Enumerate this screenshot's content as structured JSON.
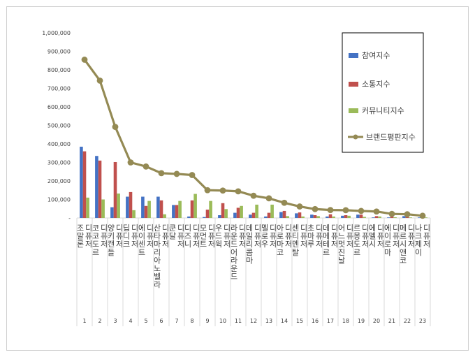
{
  "chart_data": {
    "type": "bar",
    "y_tick_labels": [
      "-",
      "100,000",
      "200,000",
      "300,000",
      "400,000",
      "500,000",
      "600,000",
      "700,000",
      "800,000",
      "900,000",
      "1,000,000"
    ],
    "ylim": [
      0,
      1000000
    ],
    "categories": [
      {
        "num": "1",
        "name": "조말론 디퓨저"
      },
      {
        "num": "2",
        "name": "코코도르 디퓨저"
      },
      {
        "num": "3",
        "name": "양키캔들 디퓨저"
      },
      {
        "num": "4",
        "name": "딥디크 디퓨저"
      },
      {
        "num": "5",
        "name": "에이센트 디퓨저"
      },
      {
        "num": "6",
        "name": "산타마리아노벨라 디퓨저"
      },
      {
        "num": "7",
        "name": "쿤달 디퓨저"
      },
      {
        "num": "8",
        "name": "디즈니 디퓨저"
      },
      {
        "num": "9",
        "name": "모먼트 디퓨저"
      },
      {
        "num": "10",
        "name": "우드윅 디퓨저"
      },
      {
        "num": "11",
        "name": "라운드어라운드 디퓨저"
      },
      {
        "num": "12",
        "name": "데일리콤마 디퓨저"
      },
      {
        "num": "13",
        "name": "멜로우 디퓨저"
      },
      {
        "num": "14",
        "name": "아로마코 디퓨저"
      },
      {
        "num": "15",
        "name": "센티멘탈 디퓨저"
      },
      {
        "num": "16",
        "name": "초마루 디퓨저"
      },
      {
        "num": "17",
        "name": "데메테르 디퓨저"
      },
      {
        "num": "18",
        "name": "어느멋진날 디퓨저"
      },
      {
        "num": "19",
        "name": "르몽도르 디퓨저"
      },
      {
        "num": "20",
        "name": "에멜시 디퓨저"
      },
      {
        "num": "21",
        "name": "에이로마 디퓨저"
      },
      {
        "num": "22",
        "name": "메르시앤코 디퓨저"
      },
      {
        "num": "23",
        "name": "나크제이 디퓨저"
      }
    ],
    "series": [
      {
        "name": "참여지수",
        "kind": "bar",
        "color": "#4472c4",
        "values": [
          385000,
          335000,
          58000,
          115000,
          115000,
          115000,
          70000,
          8000,
          5000,
          15000,
          28000,
          18000,
          8000,
          32000,
          25000,
          18000,
          8000,
          12000,
          18000,
          3000,
          3000,
          10000,
          3000
        ]
      },
      {
        "name": "소통지수",
        "kind": "bar",
        "color": "#c0504d",
        "values": [
          360000,
          310000,
          302000,
          140000,
          65000,
          95000,
          70000,
          95000,
          45000,
          80000,
          55000,
          28000,
          28000,
          38000,
          30000,
          15000,
          20000,
          15000,
          18000,
          10000,
          8000,
          6000,
          5000
        ]
      },
      {
        "name": "커뮤니티지수",
        "kind": "bar",
        "color": "#9bbb59",
        "values": [
          110000,
          100000,
          132000,
          42000,
          92000,
          20000,
          92000,
          130000,
          92000,
          48000,
          65000,
          72000,
          72000,
          10000,
          8000,
          10000,
          8000,
          12000,
          6000,
          8000,
          4000,
          3000,
          3000
        ]
      },
      {
        "name": "브랜드평판지수",
        "kind": "line",
        "color": "#948a54",
        "values": [
          855000,
          742000,
          492000,
          300000,
          278000,
          242000,
          238000,
          232000,
          150000,
          148000,
          144000,
          120000,
          106000,
          82000,
          62000,
          48000,
          43000,
          42000,
          38000,
          35000,
          22000,
          20000,
          12000
        ]
      }
    ],
    "legend_position": "right",
    "grid": false
  }
}
